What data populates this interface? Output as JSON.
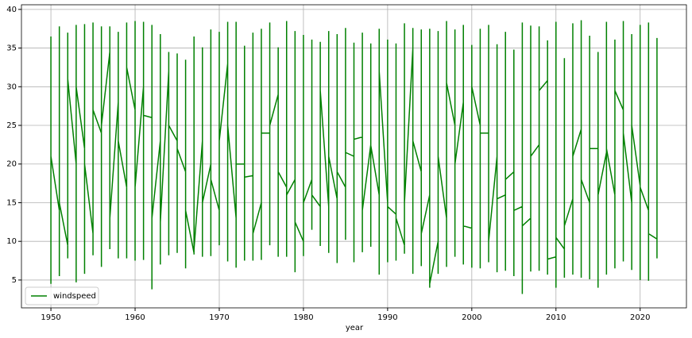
{
  "chart_data": {
    "type": "line",
    "xlabel": "year",
    "x": [
      1950,
      1950,
      1950,
      1950,
      1951,
      1951,
      1951,
      1951,
      1952,
      1952,
      1952,
      1952,
      1953,
      1953,
      1953,
      1953,
      1954,
      1954,
      1954,
      1954,
      1955,
      1955,
      1955,
      1955,
      1956,
      1956,
      1956,
      1956,
      1957,
      1957,
      1957,
      1957,
      1958,
      1958,
      1958,
      1958,
      1959,
      1959,
      1959,
      1959,
      1960,
      1960,
      1960,
      1960,
      1961,
      1961,
      1961,
      1961,
      1962,
      1962,
      1962,
      1962,
      1963,
      1963,
      1963,
      1963,
      1964,
      1964,
      1964,
      1964,
      1965,
      1965,
      1965,
      1965,
      1966,
      1966,
      1966,
      1966,
      1967,
      1967,
      1967,
      1967,
      1968,
      1968,
      1968,
      1968,
      1969,
      1969,
      1969,
      1969,
      1970,
      1970,
      1970,
      1970,
      1971,
      1971,
      1971,
      1971,
      1972,
      1972,
      1972,
      1972,
      1973,
      1973,
      1973,
      1973,
      1974,
      1974,
      1974,
      1974,
      1975,
      1975,
      1975,
      1975,
      1976,
      1976,
      1976,
      1976,
      1977,
      1977,
      1977,
      1977,
      1978,
      1978,
      1978,
      1978,
      1979,
      1979,
      1979,
      1979,
      1980,
      1980,
      1980,
      1980,
      1981,
      1981,
      1981,
      1981,
      1982,
      1982,
      1982,
      1982,
      1983,
      1983,
      1983,
      1983,
      1984,
      1984,
      1984,
      1984,
      1985,
      1985,
      1985,
      1985,
      1986,
      1986,
      1986,
      1986,
      1987,
      1987,
      1987,
      1987,
      1988,
      1988,
      1988,
      1988,
      1989,
      1989,
      1989,
      1989,
      1990,
      1990,
      1990,
      1990,
      1991,
      1991,
      1991,
      1991,
      1992,
      1992,
      1992,
      1992,
      1993,
      1993,
      1993,
      1993,
      1994,
      1994,
      1994,
      1994,
      1995,
      1995,
      1995,
      1995,
      1996,
      1996,
      1996,
      1996,
      1997,
      1997,
      1997,
      1997,
      1998,
      1998,
      1998,
      1998,
      1999,
      1999,
      1999,
      1999,
      2000,
      2000,
      2000,
      2000,
      2001,
      2001,
      2001,
      2001,
      2002,
      2002,
      2002,
      2002,
      2003,
      2003,
      2003,
      2003,
      2004,
      2004,
      2004,
      2004,
      2005,
      2005,
      2005,
      2005,
      2006,
      2006,
      2006,
      2006,
      2007,
      2007,
      2007,
      2007,
      2008,
      2008,
      2008,
      2008,
      2009,
      2009,
      2009,
      2009,
      2010,
      2010,
      2010,
      2010,
      2011,
      2011,
      2011,
      2011,
      2012,
      2012,
      2012,
      2012,
      2013,
      2013,
      2013,
      2013,
      2014,
      2014,
      2014,
      2014,
      2015,
      2015,
      2015,
      2015,
      2016,
      2016,
      2016,
      2016,
      2017,
      2017,
      2017,
      2017,
      2018,
      2018,
      2018,
      2018,
      2019,
      2019,
      2019,
      2019,
      2020,
      2020,
      2020,
      2020,
      2021,
      2021,
      2021,
      2021,
      2022,
      2022,
      2022,
      2022
    ],
    "series": [
      {
        "name": "windspeed",
        "color": "#008000",
        "values": [
          20,
          36.5,
          4.5,
          21,
          14,
          37.8,
          5.5,
          15,
          9.5,
          37,
          7.8,
          31,
          20,
          38,
          4.7,
          30,
          22,
          38.1,
          5.8,
          20,
          11,
          38.3,
          8.2,
          27,
          24,
          37.8,
          6.7,
          25,
          34.5,
          37.8,
          9,
          13,
          28,
          37.1,
          7.8,
          23,
          17,
          38.3,
          7.8,
          32.5,
          27,
          38.5,
          7.5,
          17,
          30,
          38.4,
          7.6,
          26.3,
          26,
          38,
          3.8,
          13,
          23,
          36.8,
          7,
          12.5,
          32,
          34.5,
          8.2,
          25,
          23,
          34.3,
          8.5,
          22,
          19,
          33.5,
          6.5,
          14,
          8.5,
          36.5,
          8.3,
          9,
          23,
          35.1,
          8,
          15,
          20,
          37.4,
          8.1,
          18,
          14,
          37.1,
          9.5,
          23,
          33,
          38.4,
          7.4,
          25,
          13,
          38.4,
          6.6,
          20,
          20,
          35.3,
          7.5,
          18.3,
          18.5,
          37,
          7.5,
          11,
          15,
          37.5,
          7.6,
          24,
          24,
          38.3,
          9.5,
          25,
          29,
          35.1,
          8,
          19,
          17,
          38.5,
          8,
          16,
          18,
          37.2,
          6,
          12.5,
          10,
          36.7,
          8.1,
          15,
          18,
          36.1,
          11.5,
          16,
          14.5,
          35.8,
          9.4,
          29.5,
          14.5,
          37.2,
          8.5,
          21,
          15.5,
          36.8,
          7.2,
          19,
          17,
          37.6,
          10.2,
          21.5,
          21,
          35.7,
          7.3,
          23.2,
          23.5,
          37,
          8.6,
          14,
          22.5,
          35.6,
          9.3,
          22.4,
          16,
          37.5,
          5.7,
          32,
          15,
          36.1,
          7.3,
          14.5,
          13.5,
          35.6,
          7.5,
          13,
          9.5,
          38.2,
          8.4,
          15,
          35,
          37.6,
          5.8,
          23,
          19,
          37.4,
          6.8,
          11,
          16,
          37.5,
          4,
          4.5,
          10,
          37.2,
          5.8,
          21,
          13,
          38.5,
          6.7,
          30.5,
          25,
          37.4,
          8,
          20,
          28,
          38,
          7,
          12,
          11.7,
          35.4,
          6.6,
          30,
          25,
          37.5,
          6.5,
          24,
          24,
          38,
          7.3,
          10,
          21,
          35.5,
          6,
          15.5,
          16,
          37.1,
          6.2,
          18,
          19,
          34.8,
          5.5,
          14,
          14.5,
          38.3,
          3.2,
          12,
          13,
          37.9,
          6.1,
          21,
          22.5,
          37.8,
          6.2,
          29.5,
          30.8,
          36,
          5.7,
          7.7,
          8,
          38.4,
          4,
          10.5,
          9,
          33.7,
          5.3,
          12,
          15.5,
          38.2,
          5.7,
          21,
          24.5,
          38.6,
          5.3,
          18,
          15,
          36.6,
          5.1,
          22,
          22,
          34.5,
          4,
          16,
          21.5,
          38.4,
          5.7,
          22,
          16,
          36.1,
          6.5,
          29.5,
          27,
          38.5,
          7.4,
          24,
          15,
          36.8,
          6.3,
          25,
          17.2,
          38,
          5,
          17,
          14,
          38.3,
          4.9,
          11,
          10.3,
          36.3,
          7.8,
          10.3
        ]
      }
    ],
    "xlim": [
      1946.5,
      2025.5
    ],
    "ylim": [
      1.4,
      40.6
    ],
    "xticks": [
      1950,
      1960,
      1970,
      1980,
      1990,
      2000,
      2010,
      2020
    ],
    "yticks": [
      5,
      10,
      15,
      20,
      25,
      30,
      35,
      40
    ],
    "grid": true,
    "legend": "lower left"
  }
}
